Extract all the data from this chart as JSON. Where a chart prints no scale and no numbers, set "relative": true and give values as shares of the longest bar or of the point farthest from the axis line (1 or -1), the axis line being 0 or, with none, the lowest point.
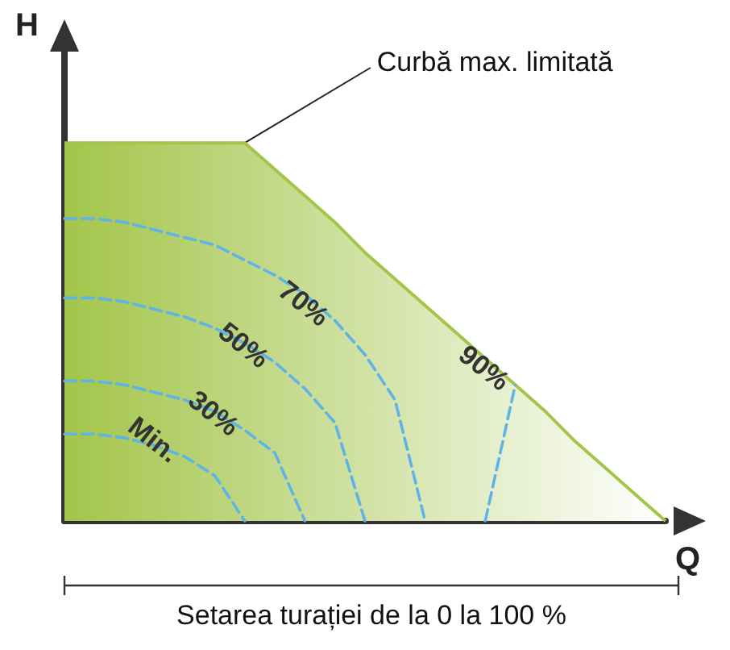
{
  "chart_data": {
    "type": "line",
    "relative": true,
    "xlabel": "Q",
    "ylabel": "H",
    "line_style": "dashed",
    "marker": "none",
    "grid": false,
    "legend": false,
    "categories": [
      null,
      null,
      null,
      null,
      null,
      null,
      null,
      null,
      null,
      null,
      null,
      null,
      null,
      null,
      null,
      null,
      null,
      null,
      null,
      null,
      null
    ],
    "series": [
      {
        "type": "area",
        "color": "#a3c54a",
        "values": [
          1,
          1,
          1,
          1,
          1,
          1,
          1,
          0.93,
          0.86,
          0.79,
          0.71,
          0.64,
          0.57,
          0.5,
          0.43,
          0.36,
          0.29,
          0.21,
          0.14,
          0.07,
          0
        ]
      },
      {
        "name": "Min.",
        "color": "#5fb3e6",
        "values": [
          0.23,
          0.23,
          0.22,
          0.2,
          0.17,
          0.12,
          0,
          null,
          null,
          null,
          null,
          null,
          null,
          null,
          null,
          null,
          null,
          null,
          null,
          null,
          null
        ]
      },
      {
        "name": "30%",
        "color": "#5fb3e6",
        "values": [
          0.37,
          0.37,
          0.36,
          0.34,
          0.32,
          0.29,
          0.24,
          0.18,
          0,
          null,
          null,
          null,
          null,
          null,
          null,
          null,
          null,
          null,
          null,
          null,
          null
        ]
      },
      {
        "name": "50%",
        "color": "#5fb3e6",
        "values": [
          0.59,
          0.59,
          0.58,
          0.56,
          0.54,
          0.51,
          0.47,
          0.42,
          0.35,
          0.26,
          0,
          null,
          null,
          null,
          null,
          null,
          null,
          null,
          null,
          null,
          null
        ]
      },
      {
        "name": "70%",
        "color": "#5fb3e6",
        "values": [
          0.8,
          0.8,
          0.79,
          0.77,
          0.75,
          0.73,
          0.69,
          0.65,
          0.6,
          0.53,
          0.44,
          0.32,
          0,
          null,
          null,
          null,
          null,
          null,
          null,
          null,
          null
        ]
      },
      {
        "name": "90%",
        "color": "#5fb3e6",
        "values": [
          null,
          null,
          null,
          null,
          null,
          null,
          null,
          null,
          null,
          null,
          null,
          null,
          null,
          null,
          0,
          0.36,
          null,
          null,
          null,
          null,
          null
        ]
      }
    ],
    "annotations": [
      "Curbă max. limitată",
      "Setarea turației de la 0 la 100 %"
    ]
  }
}
